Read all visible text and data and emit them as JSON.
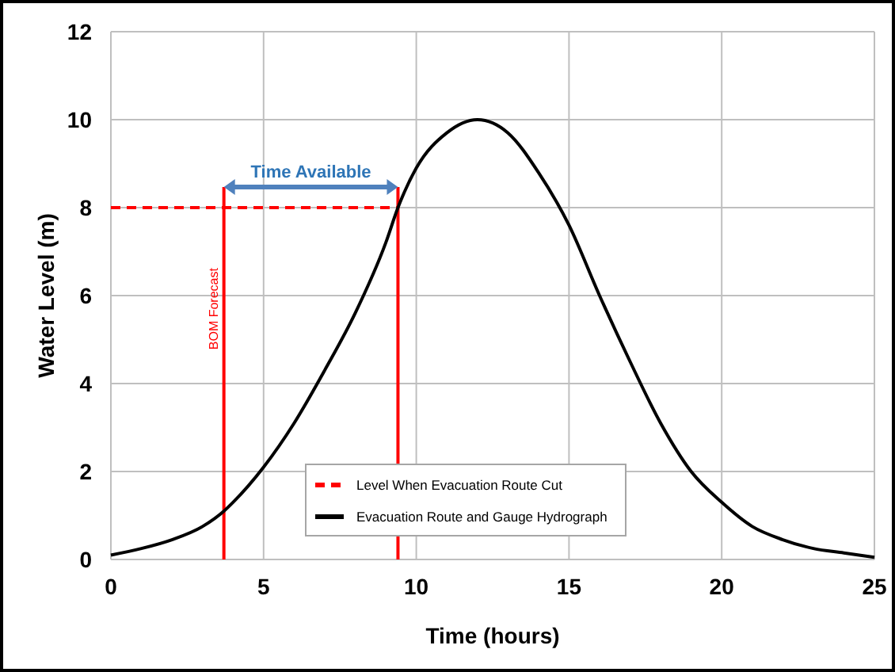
{
  "chart_data": {
    "type": "line",
    "xlabel": "Time (hours)",
    "ylabel": "Water Level (m)",
    "xlim": [
      0,
      25
    ],
    "ylim": [
      0,
      12
    ],
    "xticks": [
      0,
      5,
      10,
      15,
      20,
      25
    ],
    "yticks": [
      0,
      2,
      4,
      6,
      8,
      10,
      12
    ],
    "grid": true,
    "legend": "bottom",
    "marker": "none",
    "series": [
      {
        "name": "Level When Evacuation Route Cut",
        "color": "#ff0000",
        "line_style": "dashed",
        "x": [
          0,
          9.4
        ],
        "values": [
          8,
          8
        ]
      },
      {
        "name": "Evacuation Route and Gauge Hydrograph",
        "color": "#000000",
        "line_style": "solid",
        "x": [
          0,
          1,
          2,
          3,
          3.7,
          4,
          5,
          6,
          7,
          8,
          9,
          9.4,
          10,
          11,
          12,
          13,
          14,
          15,
          16,
          17,
          18,
          19,
          20,
          21,
          22,
          23,
          24,
          25
        ],
        "values": [
          0.1,
          0.25,
          0.45,
          0.75,
          1.1,
          1.3,
          2.1,
          3.1,
          4.3,
          5.6,
          7.2,
          8,
          8.9,
          9.7,
          10,
          9.7,
          8.8,
          7.6,
          6.0,
          4.5,
          3.1,
          2.0,
          1.3,
          0.75,
          0.45,
          0.25,
          0.15,
          0.05
        ]
      }
    ],
    "ref_lines": [
      {
        "axis": "x",
        "value": 3.7,
        "label": "BOM Forecast",
        "color": "#ff0000"
      },
      {
        "axis": "x",
        "value": 9.4,
        "color": "#ff0000"
      }
    ],
    "annotations": [
      "Time Available"
    ]
  }
}
